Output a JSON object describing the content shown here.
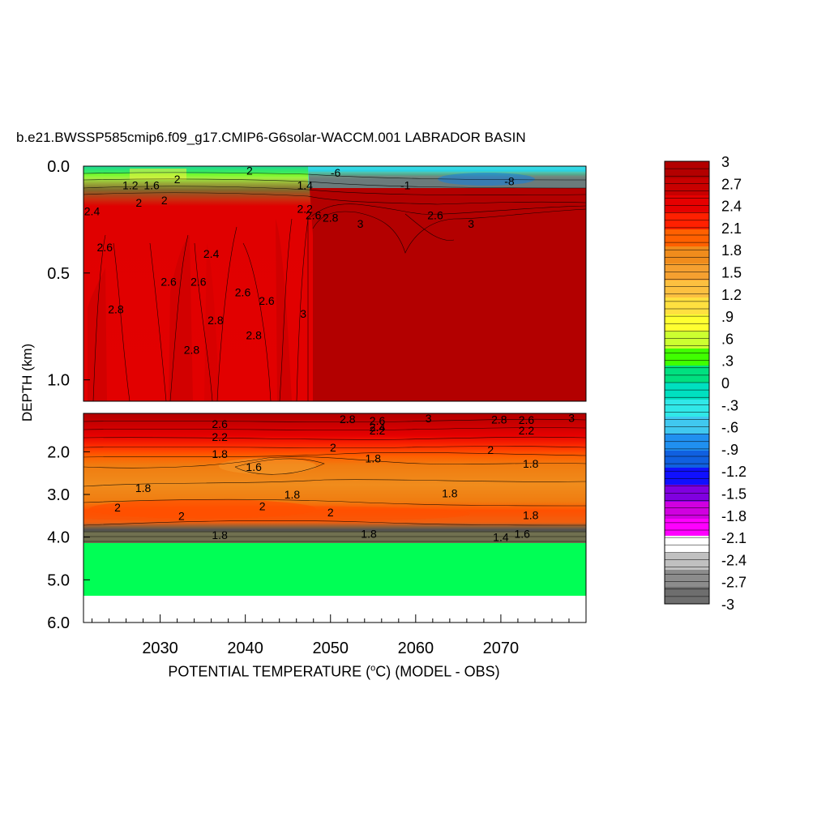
{
  "chart_data": {
    "type": "heatmap",
    "title": "b.e21.BWSSP585cmip6.f09_g17.CMIP6-G6solar-WACCM.001 LABRADOR BASIN",
    "xlabel_prefix": "POTENTIAL TEMPERATURE (",
    "xlabel_unit_sup": "o",
    "xlabel_suffix": "C) (MODEL - OBS)",
    "ylabel": "DEPTH (km)",
    "x_ticks": [
      "2030",
      "2040",
      "2050",
      "2060",
      "2070"
    ],
    "x_tick_values": [
      2030,
      2040,
      2050,
      2060,
      2070
    ],
    "xlim": [
      2021,
      2080
    ],
    "panels": [
      {
        "name": "upper",
        "ylim": [
          0.0,
          1.1
        ],
        "y_ticks": [
          "0.0",
          "0.5",
          "1.0"
        ],
        "y_tick_values": [
          0.0,
          0.5,
          1.0
        ]
      },
      {
        "name": "lower",
        "ylim": [
          1.1,
          6.0
        ],
        "y_ticks": [
          "2.0",
          "3.0",
          "4.0",
          "5.0",
          "6.0"
        ],
        "y_tick_values": [
          2.0,
          3.0,
          4.0,
          5.0,
          6.0
        ]
      }
    ],
    "colorbar": {
      "labels": [
        "3",
        "2.7",
        "2.4",
        "2.1",
        "1.8",
        "1.5",
        "1.2",
        ".9",
        ".6",
        ".3",
        "0",
        "-.3",
        "-.6",
        "-.9",
        "-1.2",
        "-1.5",
        "-1.8",
        "-2.1",
        "-2.4",
        "-2.7",
        "-3"
      ],
      "min": -3,
      "max": 3,
      "colors": [
        "#b30000",
        "#c80000",
        "#e60000",
        "#ff2000",
        "#ff6000",
        "#f08c1c",
        "#f5a030",
        "#fcc040",
        "#ffe040",
        "#ffff30",
        "#ccff30",
        "#40ff00",
        "#00e080",
        "#00e0c0",
        "#30e8e8",
        "#40c8f0",
        "#2090f0",
        "#1060e0",
        "#1010ff",
        "#8000e0",
        "#d000e0",
        "#ff00ff",
        "#ffffff",
        "#c0c0c0",
        "#8c8c8c",
        "#6e6e6e"
      ]
    },
    "contour_labels": [
      {
        "t": "2",
        "x": 2040.5,
        "d": 0.02
      },
      {
        "t": "-6",
        "x": 2050.6,
        "d": 0.03
      },
      {
        "t": "-1",
        "x": 2058.8,
        "d": 0.09
      },
      {
        "t": "-8",
        "x": 2071.0,
        "d": 0.07
      },
      {
        "t": "1.2",
        "x": 2026.5,
        "d": 0.09
      },
      {
        "t": "1.6",
        "x": 2029.0,
        "d": 0.09
      },
      {
        "t": "2",
        "x": 2032.0,
        "d": 0.06
      },
      {
        "t": "1.4",
        "x": 2047.0,
        "d": 0.09
      },
      {
        "t": "2",
        "x": 2030.5,
        "d": 0.16
      },
      {
        "t": "2",
        "x": 2027.5,
        "d": 0.17
      },
      {
        "t": "2.4",
        "x": 2022.0,
        "d": 0.21
      },
      {
        "t": "2.2",
        "x": 2047.0,
        "d": 0.2
      },
      {
        "t": "2.6",
        "x": 2048.0,
        "d": 0.23
      },
      {
        "t": "2.8",
        "x": 2050.0,
        "d": 0.24
      },
      {
        "t": "3",
        "x": 2053.5,
        "d": 0.27
      },
      {
        "t": "2.6",
        "x": 2062.3,
        "d": 0.23
      },
      {
        "t": "3",
        "x": 2066.5,
        "d": 0.27
      },
      {
        "t": "2.6",
        "x": 2023.5,
        "d": 0.38
      },
      {
        "t": "2.4",
        "x": 2036.0,
        "d": 0.41
      },
      {
        "t": "2.6",
        "x": 2031.0,
        "d": 0.54
      },
      {
        "t": "2.6",
        "x": 2034.5,
        "d": 0.54
      },
      {
        "t": "2.6",
        "x": 2039.7,
        "d": 0.59
      },
      {
        "t": "2.6",
        "x": 2042.5,
        "d": 0.63
      },
      {
        "t": "2.8",
        "x": 2024.8,
        "d": 0.67
      },
      {
        "t": "2.8",
        "x": 2036.5,
        "d": 0.72
      },
      {
        "t": "3",
        "x": 2046.8,
        "d": 0.69
      },
      {
        "t": "2.8",
        "x": 2041.0,
        "d": 0.79
      },
      {
        "t": "2.8",
        "x": 2033.7,
        "d": 0.86
      },
      {
        "t": "2.8",
        "x": 2052.0,
        "d": 1.23
      },
      {
        "t": "3",
        "x": 2061.5,
        "d": 1.21
      },
      {
        "t": "2.8",
        "x": 2069.8,
        "d": 1.24
      },
      {
        "t": "2.6",
        "x": 2073.0,
        "d": 1.25
      },
      {
        "t": "3",
        "x": 2078.3,
        "d": 1.2
      },
      {
        "t": "2.6",
        "x": 2055.5,
        "d": 1.27
      },
      {
        "t": "2.6",
        "x": 2037.0,
        "d": 1.35
      },
      {
        "t": "2.4",
        "x": 2055.5,
        "d": 1.42
      },
      {
        "t": "2.2",
        "x": 2055.5,
        "d": 1.5
      },
      {
        "t": "2.2",
        "x": 2073.0,
        "d": 1.5
      },
      {
        "t": "2.2",
        "x": 2037.0,
        "d": 1.65
      },
      {
        "t": "2",
        "x": 2050.3,
        "d": 1.9
      },
      {
        "t": "2",
        "x": 2068.8,
        "d": 1.95
      },
      {
        "t": "1.8",
        "x": 2037.0,
        "d": 2.05
      },
      {
        "t": "1.8",
        "x": 2055.0,
        "d": 2.15
      },
      {
        "t": "1.8",
        "x": 2073.5,
        "d": 2.28
      },
      {
        "t": "1.6",
        "x": 2041.0,
        "d": 2.35
      },
      {
        "t": "1.8",
        "x": 2028.0,
        "d": 2.85
      },
      {
        "t": "1.8",
        "x": 2045.5,
        "d": 3.0
      },
      {
        "t": "1.8",
        "x": 2064.0,
        "d": 2.97
      },
      {
        "t": "2",
        "x": 2025.0,
        "d": 3.3
      },
      {
        "t": "2",
        "x": 2032.5,
        "d": 3.5
      },
      {
        "t": "2",
        "x": 2050.0,
        "d": 3.42
      },
      {
        "t": "2",
        "x": 2042.0,
        "d": 3.27
      },
      {
        "t": "1.8",
        "x": 2073.5,
        "d": 3.48
      },
      {
        "t": "1.8",
        "x": 2037.0,
        "d": 3.95
      },
      {
        "t": "1.8",
        "x": 2054.5,
        "d": 3.92
      },
      {
        "t": "1.6",
        "x": 2072.5,
        "d": 3.92
      },
      {
        "t": "1.4",
        "x": 2070.0,
        "d": 4.0
      }
    ]
  }
}
